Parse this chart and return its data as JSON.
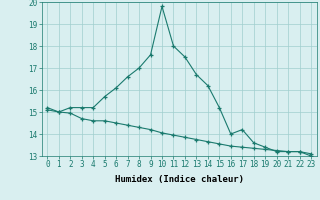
{
  "line1_x": [
    0,
    1,
    2,
    3,
    4,
    5,
    6,
    7,
    8,
    9,
    10,
    11,
    12,
    13,
    14,
    15,
    16,
    17,
    18,
    19,
    20,
    21,
    22,
    23
  ],
  "line1_y": [
    15.2,
    15.0,
    15.2,
    15.2,
    15.2,
    15.7,
    16.1,
    16.6,
    17.0,
    17.6,
    19.8,
    18.0,
    17.5,
    16.7,
    16.2,
    15.2,
    14.0,
    14.2,
    13.6,
    13.4,
    13.2,
    13.2,
    13.2,
    13.0
  ],
  "line2_x": [
    0,
    1,
    2,
    3,
    4,
    5,
    6,
    7,
    8,
    9,
    10,
    11,
    12,
    13,
    14,
    15,
    16,
    17,
    18,
    19,
    20,
    21,
    22,
    23
  ],
  "line2_y": [
    15.1,
    15.0,
    14.95,
    14.7,
    14.6,
    14.6,
    14.5,
    14.4,
    14.3,
    14.2,
    14.05,
    13.95,
    13.85,
    13.75,
    13.65,
    13.55,
    13.45,
    13.4,
    13.35,
    13.3,
    13.25,
    13.2,
    13.2,
    13.1
  ],
  "line_color": "#1a7a6e",
  "bg_color": "#d9eff0",
  "grid_color": "#a0cece",
  "xlabel": "Humidex (Indice chaleur)",
  "ylim": [
    13,
    20
  ],
  "xlim": [
    -0.5,
    23.5
  ],
  "yticks": [
    13,
    14,
    15,
    16,
    17,
    18,
    19,
    20
  ],
  "xticks": [
    0,
    1,
    2,
    3,
    4,
    5,
    6,
    7,
    8,
    9,
    10,
    11,
    12,
    13,
    14,
    15,
    16,
    17,
    18,
    19,
    20,
    21,
    22,
    23
  ],
  "xlabel_fontsize": 6.5,
  "tick_fontsize": 5.5
}
